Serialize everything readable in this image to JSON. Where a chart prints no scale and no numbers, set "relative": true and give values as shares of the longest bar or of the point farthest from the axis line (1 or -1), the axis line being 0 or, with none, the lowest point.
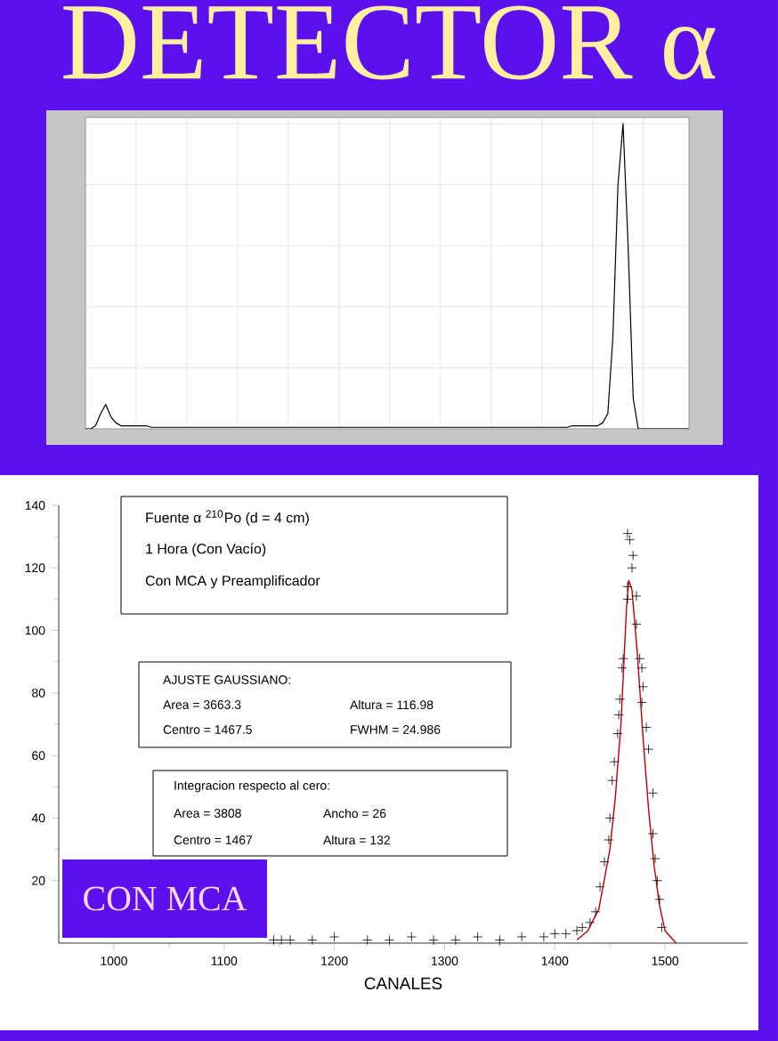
{
  "chart_data": [
    {
      "type": "line",
      "title": "DETECTOR α",
      "relative": true,
      "grid": true,
      "categories": [
        null,
        null,
        null,
        null,
        null,
        null,
        null,
        null,
        null,
        null,
        null,
        null,
        null,
        null,
        null,
        null,
        null,
        null,
        null,
        null,
        null,
        null,
        null,
        null,
        null,
        null,
        null,
        null,
        null,
        null,
        null,
        null,
        null,
        null,
        null,
        null,
        null,
        null,
        null,
        null,
        null,
        null,
        null,
        null,
        null,
        null,
        null,
        null,
        null,
        null,
        null,
        null,
        null,
        null,
        null,
        null,
        null,
        null,
        null,
        null,
        null,
        null,
        null,
        null,
        null,
        null,
        null,
        null,
        null,
        null,
        null,
        null,
        null,
        null,
        null,
        null,
        null,
        null,
        null,
        null,
        null,
        null,
        null,
        null,
        null,
        null,
        null,
        null,
        null,
        null,
        null,
        null,
        null,
        null,
        null,
        null,
        null,
        null,
        null,
        null,
        null,
        null,
        null,
        null,
        null,
        null,
        null,
        null,
        null,
        null,
        null,
        null,
        null,
        null,
        null,
        null,
        null,
        null,
        null,
        null
      ],
      "series": [
        {
          "color": "#000000",
          "values": [
            0,
            0,
            0.01,
            0.05,
            0.08,
            0.04,
            0.02,
            0.01,
            0.01,
            0.01,
            0.01,
            0.01,
            0.01,
            0.005,
            0.005,
            0.005,
            0.005,
            0.005,
            0.005,
            0.005,
            0.005,
            0.005,
            0.005,
            0.005,
            0.005,
            0.005,
            0.005,
            0.005,
            0.005,
            0.005,
            0.005,
            0.005,
            0.005,
            0.005,
            0.005,
            0.005,
            0.005,
            0.005,
            0.005,
            0.005,
            0.005,
            0.005,
            0.005,
            0.005,
            0.005,
            0.005,
            0.005,
            0.005,
            0.005,
            0.005,
            0.005,
            0.005,
            0.005,
            0.005,
            0.005,
            0.005,
            0.005,
            0.005,
            0.005,
            0.005,
            0.005,
            0.005,
            0.005,
            0.005,
            0.005,
            0.005,
            0.005,
            0.005,
            0.005,
            0.005,
            0.005,
            0.005,
            0.005,
            0.005,
            0.005,
            0.005,
            0.005,
            0.005,
            0.005,
            0.005,
            0.005,
            0.005,
            0.005,
            0.005,
            0.005,
            0.005,
            0.005,
            0.005,
            0.005,
            0.005,
            0.005,
            0.005,
            0.005,
            0.005,
            0.005,
            0.005,
            0.01,
            0.01,
            0.01,
            0.01,
            0.01,
            0.01,
            0.02,
            0.05,
            0.3,
            0.8,
            1,
            0.6,
            0.1,
            0,
            0,
            0,
            0,
            0,
            0,
            0,
            0,
            0,
            0,
            0
          ]
        }
      ]
    },
    {
      "type": "scatter",
      "xlabel": "CANALES",
      "xlim": [
        950,
        1575
      ],
      "ylim": [
        0,
        140
      ],
      "xticks": [
        1000,
        1100,
        1200,
        1300,
        1400,
        1500
      ],
      "yticks": [
        20,
        40,
        60,
        80,
        100,
        120,
        140
      ],
      "annotations": [
        "Fuente α $^{210}$Po (d = 4 cm)",
        "1 Hora (Con Vacío)",
        "Con MCA y Preamplificador",
        "AJUSTE GAUSSIANO:",
        "Area = 3663.3",
        "Altura = 116.98",
        "Centro = 1467.5",
        "FWHM = 24.986",
        "Integracion respecto al cero:",
        "Area = 3808",
        "Ancho = 26",
        "Centro = 1467",
        "Altura = 132",
        "CON MCA"
      ],
      "series": [
        {
          "type": "scatter",
          "marker": "cross",
          "color": "#000000",
          "x": [
            1145,
            1152,
            1160,
            1180,
            1200,
            1230,
            1250,
            1270,
            1290,
            1310,
            1330,
            1350,
            1370,
            1390,
            1400,
            1410,
            1420,
            1425,
            1432,
            1437,
            1441,
            1445,
            1449,
            1450,
            1452,
            1454,
            1457,
            1458,
            1459,
            1461,
            1462,
            1466,
            1466,
            1470,
            1471,
            1468,
            1466,
            1474,
            1474,
            1477,
            1479,
            1480,
            1479,
            1483,
            1485,
            1489,
            1489,
            1491,
            1493,
            1495,
            1497
          ],
          "values": [
            1,
            1,
            1,
            1,
            2,
            1,
            1,
            2,
            1,
            1,
            2,
            1,
            2,
            2,
            3,
            3,
            4,
            5,
            6.6,
            10,
            18,
            26,
            33,
            40,
            52,
            58,
            67,
            73,
            78,
            88,
            91,
            110,
            114,
            120,
            124,
            129,
            131,
            111,
            102,
            91,
            88,
            82,
            77,
            69,
            62,
            48,
            35,
            27,
            20,
            14,
            5
          ]
        },
        {
          "type": "line",
          "color": "#c00000",
          "x": [
            1420,
            1430,
            1440,
            1450,
            1455,
            1460,
            1465,
            1467,
            1470,
            1475,
            1480,
            1485,
            1490,
            1495,
            1500,
            1510
          ],
          "values": [
            1,
            4,
            11,
            30,
            47,
            70,
            107,
            116,
            113,
            92,
            66,
            43,
            25,
            12,
            4,
            0
          ]
        }
      ]
    }
  ]
}
